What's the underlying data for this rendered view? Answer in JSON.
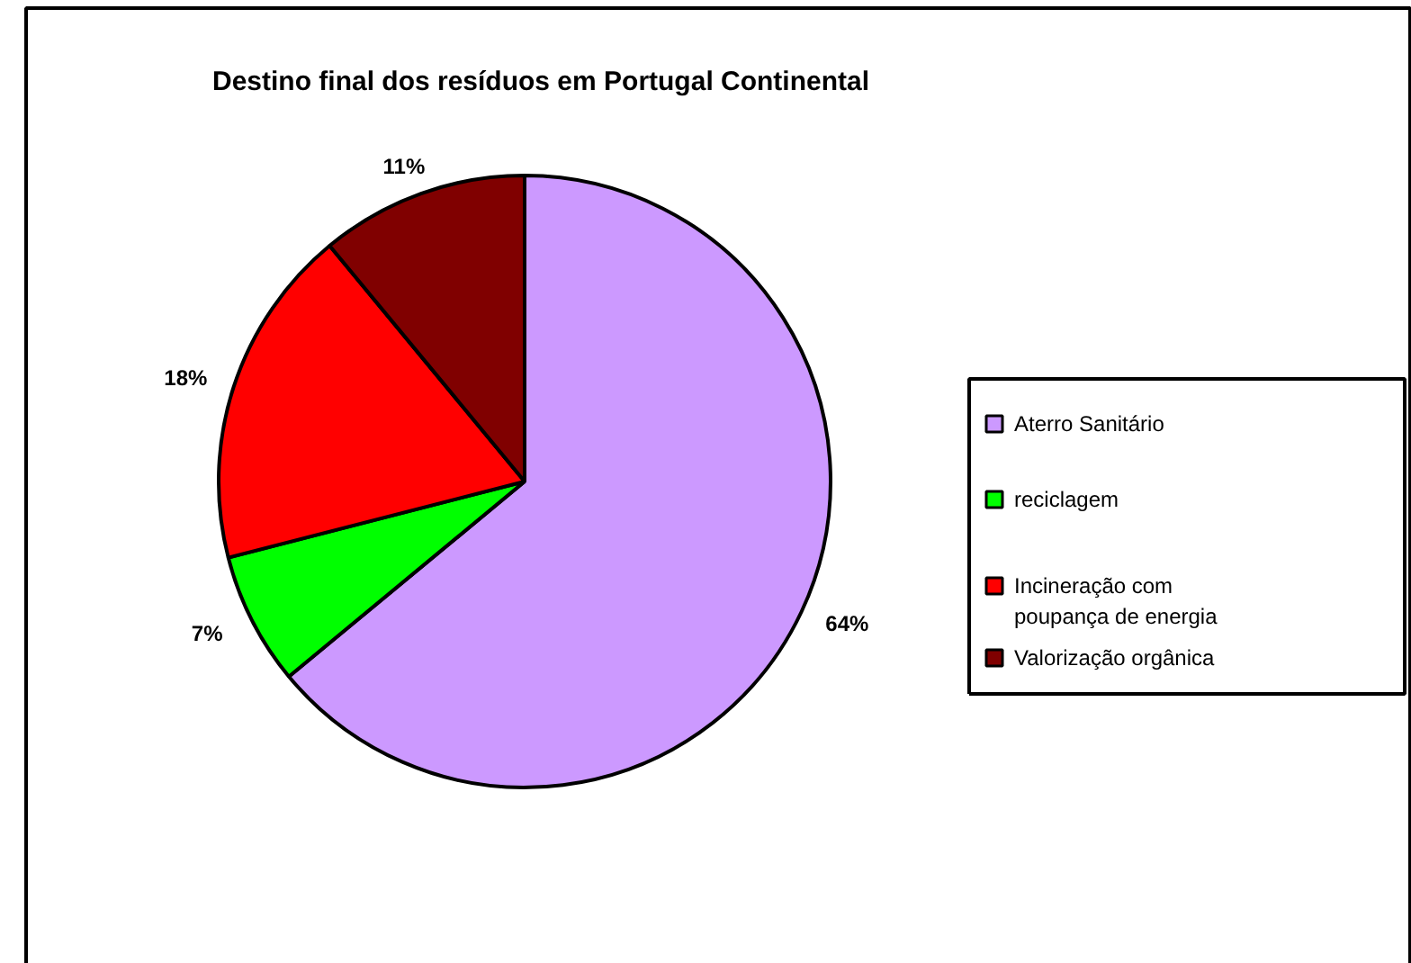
{
  "chart_data": {
    "type": "pie",
    "title": "Destino final dos resíduos em Portugal Continental",
    "categories": [
      "Aterro Sanitário",
      "reciclagem",
      "Incineração com poupança de energia",
      "Valorização orgânica"
    ],
    "values": [
      64,
      7,
      18,
      11
    ],
    "colors": [
      "#cc99ff",
      "#00ff00",
      "#ff0000",
      "#800000"
    ],
    "value_labels": [
      "64%",
      "7%",
      "18%",
      "11%"
    ],
    "legend": "right"
  }
}
